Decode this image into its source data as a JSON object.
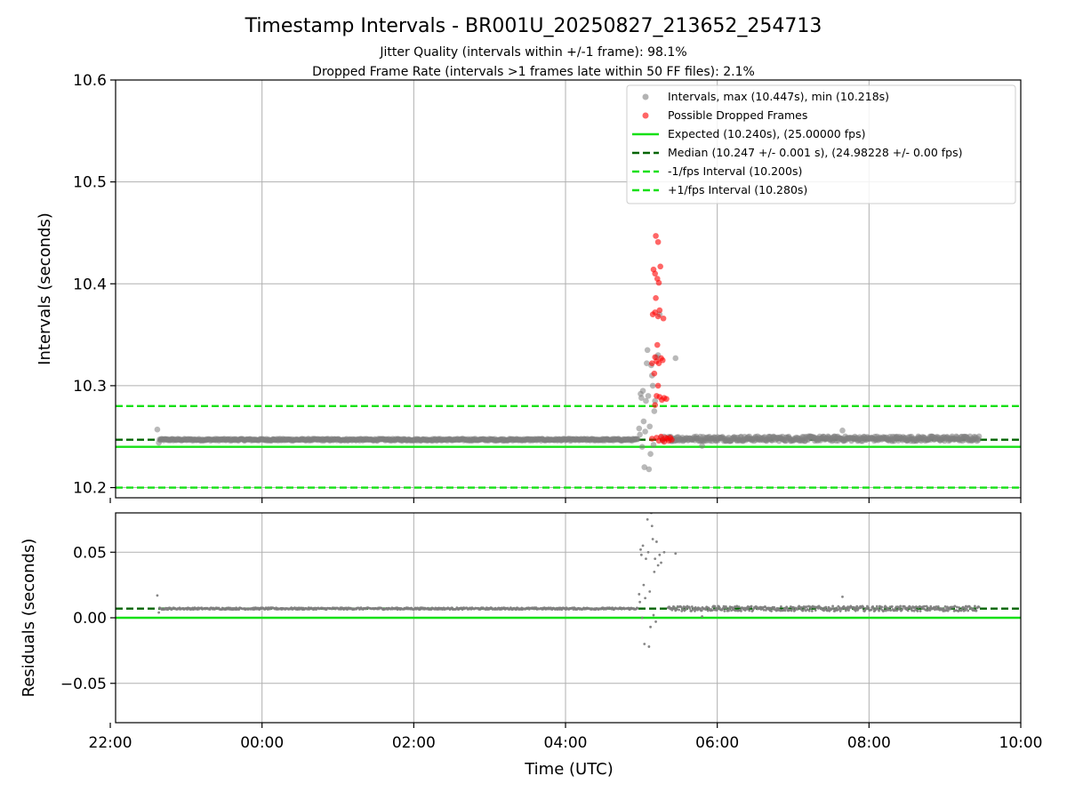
{
  "figure": {
    "title": "Timestamp Intervals - BR001U_20250827_213652_254713",
    "subtitle_1": "Jitter Quality (intervals within +/-1 frame): 98.1%",
    "subtitle_2": "Dropped Frame Rate (intervals >1 frames late within 50 FF files): 2.1%"
  },
  "colors": {
    "intervals": "#808080",
    "dropped": "#ff0000",
    "expected": "#16e016",
    "median": "#006400",
    "fps_bounds": "#16e016",
    "grid": "#b0b0b0"
  },
  "chart_data": [
    {
      "type": "scatter",
      "panel": "intervals",
      "ylabel": "Intervals (seconds)",
      "x_unit": "hours UTC, relative to 00:00 of 2025-08-28 (negative = previous evening)",
      "xlim": [
        -1.93,
        10.0
      ],
      "ylim": [
        10.19,
        10.6
      ],
      "yticks": [
        10.2,
        10.3,
        10.4,
        10.5,
        10.6
      ],
      "ytick_labels": [
        "10.2",
        "10.3",
        "10.4",
        "10.5",
        "10.6"
      ],
      "grid": true,
      "legend_position": "upper-right",
      "series": [
        {
          "name": "Intervals, max (10.447s), min (10.218s)",
          "kind": "scatter",
          "segments": [
            {
              "x_from": -1.35,
              "x_to": 4.95,
              "y": 10.247
            },
            {
              "x_from": 5.35,
              "x_to": 9.45,
              "y": 10.248
            }
          ],
          "points": [
            {
              "x": -1.38,
              "y": 10.257
            },
            {
              "x": -1.36,
              "y": 10.244
            },
            {
              "x": 4.97,
              "y": 10.258
            },
            {
              "x": 4.98,
              "y": 10.252
            },
            {
              "x": 4.99,
              "y": 10.292
            },
            {
              "x": 5.0,
              "y": 10.288
            },
            {
              "x": 5.01,
              "y": 10.24
            },
            {
              "x": 5.02,
              "y": 10.295
            },
            {
              "x": 5.03,
              "y": 10.265
            },
            {
              "x": 5.04,
              "y": 10.22
            },
            {
              "x": 5.05,
              "y": 10.255
            },
            {
              "x": 5.06,
              "y": 10.285
            },
            {
              "x": 5.07,
              "y": 10.322
            },
            {
              "x": 5.08,
              "y": 10.335
            },
            {
              "x": 5.09,
              "y": 10.29
            },
            {
              "x": 5.1,
              "y": 10.218
            },
            {
              "x": 5.11,
              "y": 10.26
            },
            {
              "x": 5.12,
              "y": 10.233
            },
            {
              "x": 5.13,
              "y": 10.32
            },
            {
              "x": 5.14,
              "y": 10.31
            },
            {
              "x": 5.15,
              "y": 10.3
            },
            {
              "x": 5.16,
              "y": 10.242
            },
            {
              "x": 5.17,
              "y": 10.275
            },
            {
              "x": 5.18,
              "y": 10.285
            },
            {
              "x": 5.2,
              "y": 10.328
            },
            {
              "x": 5.22,
              "y": 10.33
            },
            {
              "x": 5.24,
              "y": 10.37
            },
            {
              "x": 5.26,
              "y": 10.249
            },
            {
              "x": 5.28,
              "y": 10.246
            },
            {
              "x": 5.3,
              "y": 10.25
            },
            {
              "x": 5.45,
              "y": 10.327
            },
            {
              "x": 5.8,
              "y": 10.241
            },
            {
              "x": 7.65,
              "y": 10.256
            }
          ]
        },
        {
          "name": "Possible Dropped Frames",
          "kind": "scatter",
          "points": [
            {
              "x": 5.19,
              "y": 10.447
            },
            {
              "x": 5.22,
              "y": 10.441
            },
            {
              "x": 5.16,
              "y": 10.414
            },
            {
              "x": 5.25,
              "y": 10.417
            },
            {
              "x": 5.18,
              "y": 10.41
            },
            {
              "x": 5.21,
              "y": 10.405
            },
            {
              "x": 5.23,
              "y": 10.401
            },
            {
              "x": 5.19,
              "y": 10.386
            },
            {
              "x": 5.24,
              "y": 10.374
            },
            {
              "x": 5.15,
              "y": 10.37
            },
            {
              "x": 5.18,
              "y": 10.372
            },
            {
              "x": 5.22,
              "y": 10.368
            },
            {
              "x": 5.29,
              "y": 10.366
            },
            {
              "x": 5.21,
              "y": 10.34
            },
            {
              "x": 5.18,
              "y": 10.328
            },
            {
              "x": 5.2,
              "y": 10.324
            },
            {
              "x": 5.23,
              "y": 10.322
            },
            {
              "x": 5.26,
              "y": 10.327
            },
            {
              "x": 5.28,
              "y": 10.325
            },
            {
              "x": 5.14,
              "y": 10.322
            },
            {
              "x": 5.17,
              "y": 10.312
            },
            {
              "x": 5.22,
              "y": 10.3
            },
            {
              "x": 5.2,
              "y": 10.29
            },
            {
              "x": 5.24,
              "y": 10.289
            },
            {
              "x": 5.27,
              "y": 10.286
            },
            {
              "x": 5.3,
              "y": 10.288
            },
            {
              "x": 5.33,
              "y": 10.287
            },
            {
              "x": 5.18,
              "y": 10.281
            },
            {
              "x": 5.14,
              "y": 10.248
            },
            {
              "x": 5.2,
              "y": 10.249
            },
            {
              "x": 5.23,
              "y": 10.246
            },
            {
              "x": 5.26,
              "y": 10.25
            },
            {
              "x": 5.28,
              "y": 10.247
            },
            {
              "x": 5.3,
              "y": 10.245
            },
            {
              "x": 5.32,
              "y": 10.249
            },
            {
              "x": 5.34,
              "y": 10.248
            },
            {
              "x": 5.36,
              "y": 10.246
            },
            {
              "x": 5.38,
              "y": 10.249
            },
            {
              "x": 5.4,
              "y": 10.247
            }
          ]
        },
        {
          "name": "Expected (10.240s), (25.00000 fps)",
          "kind": "hline",
          "y": 10.24,
          "style": "solid"
        },
        {
          "name": "Median (10.247 +/- 0.001 s), (24.98228 +/- 0.00 fps)",
          "kind": "hline",
          "y": 10.247,
          "style": "dashed"
        },
        {
          "name": "-1/fps Interval (10.200s)",
          "kind": "hline",
          "y": 10.2,
          "style": "dashed"
        },
        {
          "name": "+1/fps Interval (10.280s)",
          "kind": "hline",
          "y": 10.28,
          "style": "dashed"
        }
      ]
    },
    {
      "type": "scatter",
      "panel": "residuals",
      "ylabel": "Residuals (seconds)",
      "xlabel": "Time (UTC)",
      "xlim": [
        -1.93,
        10.0
      ],
      "ylim": [
        -0.08,
        0.08
      ],
      "yticks": [
        -0.05,
        0.0,
        0.05
      ],
      "ytick_labels": [
        "−0.05",
        "0.00",
        "0.05"
      ],
      "xticks": [
        -2,
        0,
        2,
        4,
        6,
        8,
        10
      ],
      "xtick_labels": [
        "22:00",
        "00:00",
        "02:00",
        "04:00",
        "06:00",
        "08:00",
        "10:00"
      ],
      "grid": true,
      "series": [
        {
          "kind": "scatter",
          "segments": [
            {
              "x_from": -1.35,
              "x_to": 4.95,
              "y": 0.007
            },
            {
              "x_from": 5.35,
              "x_to": 9.45,
              "y": 0.007
            }
          ],
          "points": [
            {
              "x": -1.38,
              "y": 0.017
            },
            {
              "x": -1.36,
              "y": 0.004
            },
            {
              "x": 4.97,
              "y": 0.018
            },
            {
              "x": 4.99,
              "y": 0.052
            },
            {
              "x": 5.0,
              "y": 0.048
            },
            {
              "x": 5.02,
              "y": 0.055
            },
            {
              "x": 5.03,
              "y": 0.025
            },
            {
              "x": 5.04,
              "y": -0.02
            },
            {
              "x": 5.06,
              "y": 0.045
            },
            {
              "x": 5.07,
              "y": 0.082
            },
            {
              "x": 5.08,
              "y": 0.075
            },
            {
              "x": 5.09,
              "y": 0.05
            },
            {
              "x": 5.1,
              "y": -0.022
            },
            {
              "x": 5.12,
              "y": -0.007
            },
            {
              "x": 5.13,
              "y": 0.08
            },
            {
              "x": 5.14,
              "y": 0.07
            },
            {
              "x": 5.15,
              "y": 0.06
            },
            {
              "x": 5.16,
              "y": 0.002
            },
            {
              "x": 5.17,
              "y": 0.035
            },
            {
              "x": 5.18,
              "y": 0.045
            },
            {
              "x": 5.2,
              "y": 0.058
            },
            {
              "x": 5.22,
              "y": 0.04
            },
            {
              "x": 5.24,
              "y": 0.048
            },
            {
              "x": 5.26,
              "y": 0.042
            },
            {
              "x": 5.3,
              "y": 0.05
            },
            {
              "x": 5.45,
              "y": 0.049
            },
            {
              "x": 4.98,
              "y": 0.012
            },
            {
              "x": 5.01,
              "y": 0.0
            },
            {
              "x": 5.05,
              "y": 0.015
            },
            {
              "x": 5.11,
              "y": 0.02
            },
            {
              "x": 5.19,
              "y": -0.003
            },
            {
              "x": 5.8,
              "y": 0.001
            },
            {
              "x": 7.65,
              "y": 0.016
            }
          ]
        },
        {
          "kind": "hline",
          "y": 0.0,
          "style": "solid"
        },
        {
          "kind": "hline",
          "y": 0.007,
          "style": "dashed"
        }
      ]
    }
  ]
}
